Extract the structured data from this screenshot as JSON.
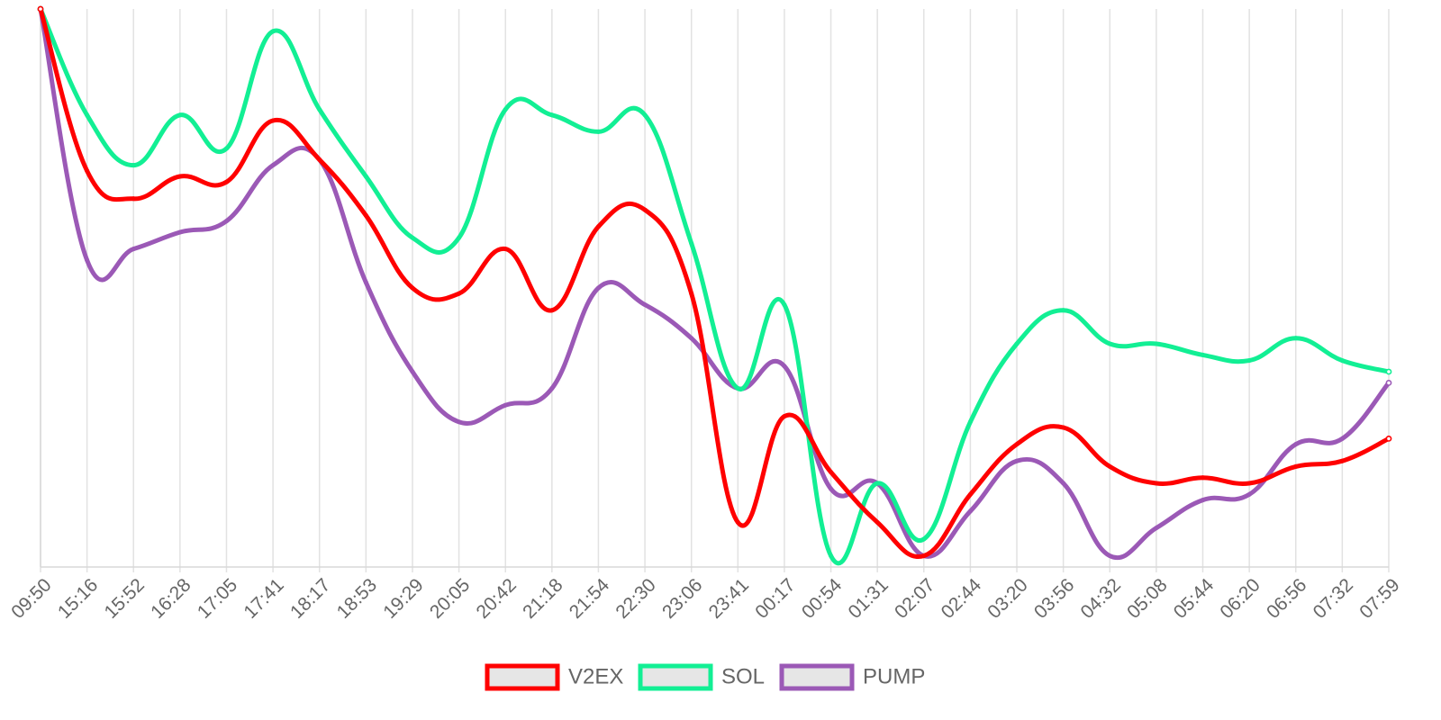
{
  "chart_data": {
    "type": "line",
    "title": "",
    "xlabel": "",
    "ylabel": "",
    "y_axis_labels_shown": false,
    "categories": [
      "09:50",
      "15:16",
      "15:52",
      "16:28",
      "17:05",
      "17:41",
      "18:17",
      "18:53",
      "19:29",
      "20:05",
      "20:42",
      "21:18",
      "21:54",
      "22:30",
      "23:06",
      "23:41",
      "00:17",
      "00:54",
      "01:31",
      "02:07",
      "02:44",
      "03:20",
      "03:56",
      "04:32",
      "05:08",
      "05:44",
      "06:20",
      "06:56",
      "07:32",
      "07:59"
    ],
    "x_tick_labels": [
      "09:50",
      "15:16",
      "15:52",
      "16:28",
      "17:05",
      "17:41",
      "18:17",
      "18:53",
      "19:29",
      "20:05",
      "20:42",
      "21:18",
      "21:54",
      "22:30",
      "23:06",
      "23:41",
      "00:17",
      "00:54",
      "01:31",
      "02:07",
      "02:44",
      "03:20",
      "03:56",
      "04:32",
      "05:08",
      "05:44",
      "06:20",
      "06:56",
      "07:32",
      "07:59"
    ],
    "grid": {
      "vertical": true,
      "horizontal": false
    },
    "legend_position": "bottom",
    "series": [
      {
        "name": "V2EX",
        "color": "#ff0000",
        "values": [
          100,
          71,
          66,
          70,
          69,
          80,
          73,
          63,
          50,
          49,
          57,
          46,
          61,
          64,
          49,
          8,
          27,
          17,
          8,
          2,
          13,
          22,
          25,
          18,
          15,
          16,
          15,
          18,
          19,
          23
        ]
      },
      {
        "name": "SOL",
        "color": "#12ef94",
        "values": [
          100,
          81,
          72,
          81,
          75,
          96,
          82,
          70,
          59,
          59,
          82,
          81,
          78,
          81,
          58,
          32,
          47,
          2,
          15,
          5,
          26,
          40,
          46,
          40,
          40,
          38,
          37,
          41,
          37,
          35
        ]
      },
      {
        "name": "PUMP",
        "color": "#9b59b6",
        "values": [
          100,
          55,
          57,
          60,
          62,
          72,
          73,
          51,
          35,
          26,
          29,
          32,
          50,
          47,
          41,
          32,
          36,
          14,
          15,
          2,
          10,
          19,
          15,
          2,
          7,
          12,
          13,
          22,
          23,
          33
        ]
      }
    ]
  }
}
